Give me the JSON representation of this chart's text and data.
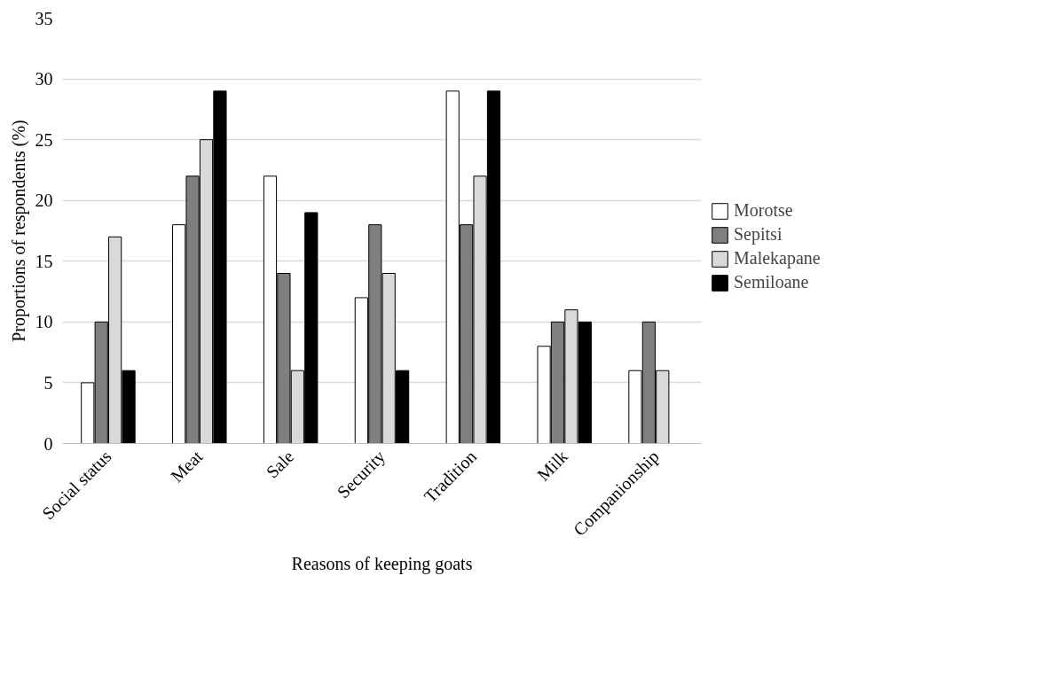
{
  "chart_data": {
    "type": "bar",
    "xlabel": "Reasons of keeping goats",
    "ylabel": "Proportions of respondents (%)",
    "categories": [
      "Social status",
      "Meat",
      "Sale",
      "Security",
      "Tradition",
      "Milk",
      "Companionship"
    ],
    "series": [
      {
        "name": "Morotse",
        "color": "#ffffff",
        "values": [
          5,
          18,
          22,
          12,
          29,
          8,
          6
        ]
      },
      {
        "name": "Sepitsi",
        "color": "#7f7f7f",
        "values": [
          10,
          22,
          14,
          18,
          18,
          10,
          10
        ]
      },
      {
        "name": "Malekapane",
        "color": "#d9d9d9",
        "values": [
          17,
          25,
          6,
          14,
          22,
          11,
          6
        ]
      },
      {
        "name": "Semiloane",
        "color": "#000000",
        "values": [
          6,
          29,
          19,
          6,
          29,
          10,
          null
        ]
      }
    ],
    "ylim": [
      0,
      35
    ],
    "yticks": [
      0,
      5,
      10,
      15,
      20,
      25,
      30,
      35
    ],
    "grid": "y",
    "legend": "right"
  }
}
